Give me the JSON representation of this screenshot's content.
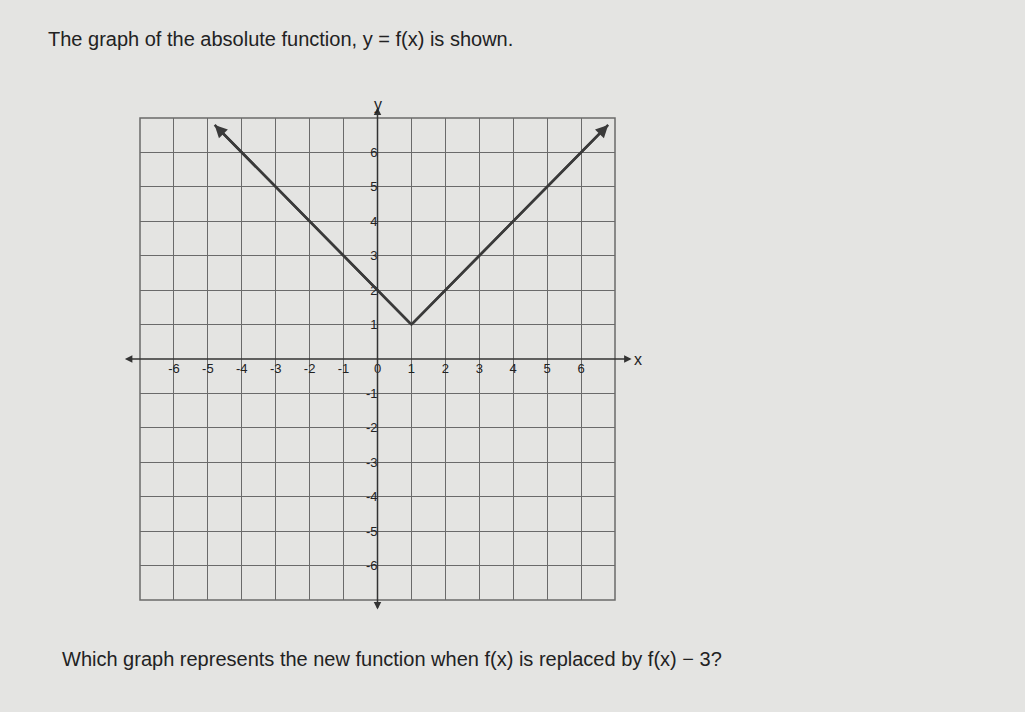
{
  "prompt": "The graph of the absolute function, y = f(x) is shown.",
  "question": "Which graph represents the new function when f(x) is replaced by f(x) − 3?",
  "chart_data": {
    "type": "line",
    "x": [
      -4.8,
      1,
      6.8
    ],
    "values": [
      6.8,
      1,
      6.8
    ],
    "xlabel": "x",
    "ylabel": "y",
    "xlim": [
      -7,
      7
    ],
    "ylim": [
      -7,
      7
    ],
    "xticks": [
      -6,
      -5,
      -4,
      -3,
      -2,
      -1,
      0,
      1,
      2,
      3,
      4,
      5,
      6
    ],
    "yticks": [
      -6,
      -5,
      -4,
      -3,
      -2,
      -1,
      1,
      2,
      3,
      4,
      5,
      6
    ],
    "grid": true,
    "color": "#3a3a3a",
    "marker": "arrow"
  }
}
